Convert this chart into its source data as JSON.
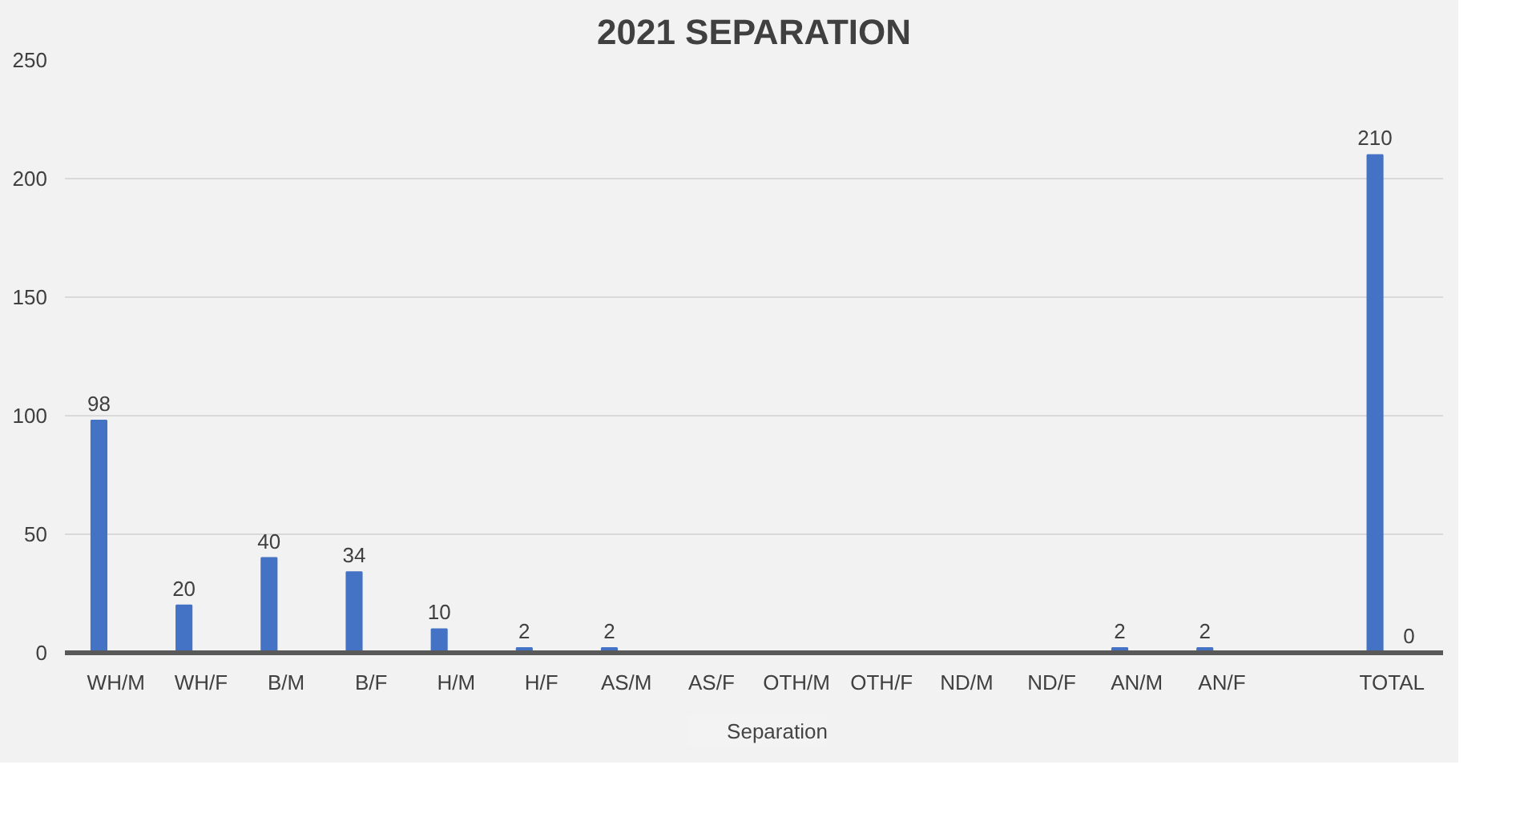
{
  "chart_data": {
    "type": "bar",
    "title": "2021 SEPARATION",
    "categories": [
      "WH/M",
      "WH/F",
      "B/M",
      "B/F",
      "H/M",
      "H/F",
      "AS/M",
      "AS/F",
      "OTH/M",
      "OTH/F",
      "ND/M",
      "ND/F",
      "AN/M",
      "AN/F",
      null,
      "TOTAL"
    ],
    "series": [
      {
        "name": "Separation",
        "color": "#4472c4",
        "values": [
          98,
          20,
          40,
          34,
          10,
          2,
          2,
          null,
          null,
          null,
          null,
          null,
          2,
          2,
          null,
          210
        ],
        "value_labels": [
          "98",
          "20",
          "40",
          "34",
          "10",
          "2",
          "2",
          null,
          null,
          null,
          null,
          null,
          "2",
          "2",
          null,
          "210"
        ]
      },
      {
        "color": "#ed7d31",
        "values": [
          null,
          null,
          null,
          null,
          null,
          null,
          null,
          null,
          null,
          null,
          null,
          null,
          null,
          null,
          null,
          0
        ],
        "value_labels": [
          null,
          null,
          null,
          null,
          null,
          null,
          null,
          null,
          null,
          null,
          null,
          null,
          null,
          null,
          null,
          "0"
        ]
      }
    ],
    "ylim": [
      0,
      250
    ],
    "yticks": [
      0,
      50,
      100,
      150,
      200,
      250
    ],
    "grid": "y",
    "legend": "bottom"
  }
}
